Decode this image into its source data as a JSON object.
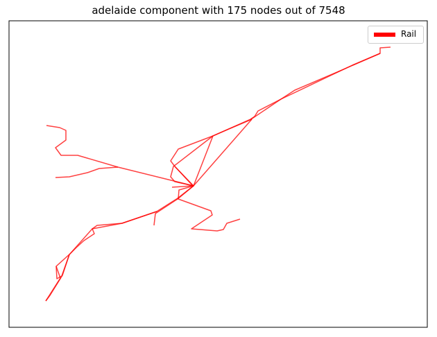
{
  "chart_data": {
    "type": "line",
    "title": "adelaide component with 175 nodes out of 7548",
    "xlabel": "",
    "ylabel": "",
    "grid": false,
    "axes_ticks": "none",
    "legend_placement": "upper right",
    "series": [
      {
        "name": "Rail",
        "color": "#ff0000",
        "segments": [
          [
            [
              563,
              68
            ],
            [
              548,
              69
            ],
            [
              548,
              77
            ],
            [
              486,
              104
            ],
            [
              425,
              130
            ],
            [
              405,
              143
            ],
            [
              372,
              160
            ],
            [
              367,
              168
            ],
            [
              361,
              172
            ],
            [
              307,
              196
            ],
            [
              257,
              215
            ],
            [
              246,
              232
            ],
            [
              252,
              240
            ],
            [
              278,
              268
            ],
            [
              248,
              270
            ]
          ],
          [
            [
              548,
              77
            ],
            [
              508,
              94
            ],
            [
              468,
              113
            ],
            [
              405,
              143
            ],
            [
              362,
              172
            ]
          ],
          [
            [
              363,
              172
            ],
            [
              330,
              186
            ],
            [
              307,
              196
            ],
            [
              279,
              268
            ],
            [
              252,
              240
            ]
          ],
          [
            [
              363,
              172
            ],
            [
              279,
              268
            ]
          ],
          [
            [
              307,
              196
            ],
            [
              250,
              240
            ],
            [
              246,
              255
            ],
            [
              252,
              262
            ],
            [
              279,
              268
            ],
            [
              256,
              286
            ],
            [
              226,
              305
            ],
            [
              176,
              322
            ]
          ],
          [
            [
              279,
              268
            ],
            [
              170,
              241
            ],
            [
              112,
              224
            ],
            [
              88,
              224
            ],
            [
              80,
              213
            ],
            [
              95,
              202
            ],
            [
              95,
              188
            ],
            [
              86,
              184
            ],
            [
              67,
              181
            ]
          ],
          [
            [
              170,
              241
            ],
            [
              143,
              243
            ],
            [
              126,
              249
            ],
            [
              100,
              255
            ],
            [
              80,
              256
            ]
          ],
          [
            [
              279,
              268
            ],
            [
              258,
              274
            ],
            [
              257,
              287
            ],
            [
              304,
              304
            ],
            [
              306,
              310
            ],
            [
              276,
              330
            ],
            [
              313,
              333
            ],
            [
              322,
              331
            ],
            [
              327,
              322
            ],
            [
              346,
              316
            ]
          ],
          [
            [
              279,
              268
            ],
            [
              256,
              287
            ],
            [
              224,
              308
            ],
            [
              222,
              325
            ]
          ],
          [
            [
              176,
              322
            ],
            [
              140,
              325
            ],
            [
              133,
              330
            ],
            [
              136,
              337
            ],
            [
              121,
              347
            ],
            [
              110,
              357
            ],
            [
              100,
              367
            ],
            [
              90,
              397
            ],
            [
              72,
              426
            ],
            [
              66,
              434
            ]
          ],
          [
            [
              226,
              305
            ],
            [
              176,
              322
            ],
            [
              133,
              330
            ],
            [
              101,
              366
            ],
            [
              81,
              384
            ],
            [
              82,
              402
            ],
            [
              89,
              398
            ],
            [
              100,
              367
            ]
          ],
          [
            [
              81,
              384
            ],
            [
              87,
              401
            ],
            [
              66,
              434
            ]
          ]
        ]
      }
    ]
  }
}
